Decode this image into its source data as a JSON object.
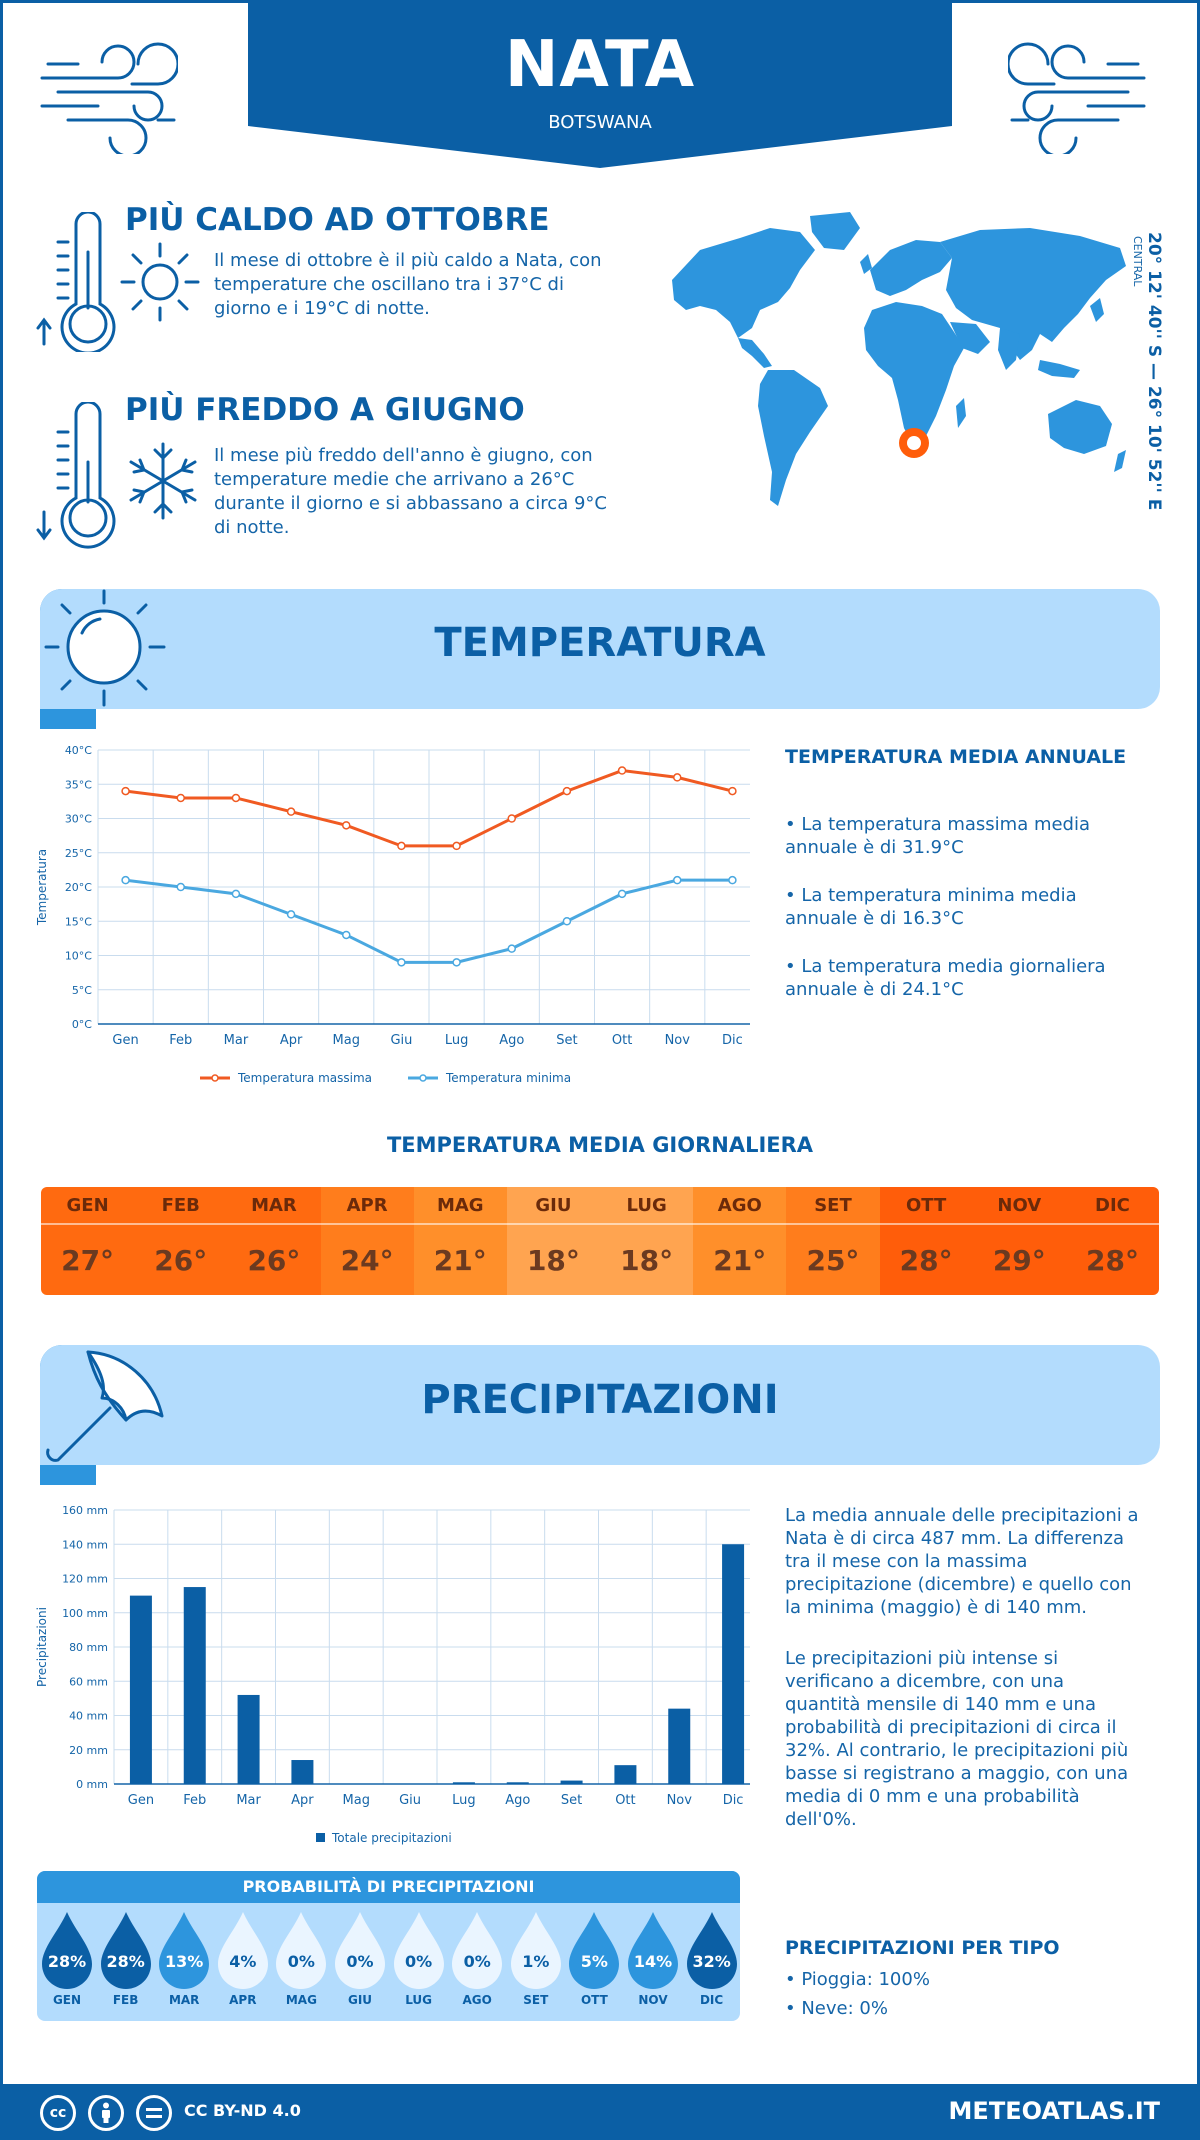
{
  "header": {
    "city": "NATA",
    "country": "BOTSWANA"
  },
  "colors": {
    "brand": "#0b5fa5",
    "accent": "#2d95dd",
    "light": "#b3dcfd",
    "max_line": "#f05a22",
    "min_line": "#4aa8e0",
    "bars": "#0b5fa5"
  },
  "facts": {
    "hot": {
      "title": "PIÙ CALDO AD OTTOBRE",
      "text": "Il mese di ottobre è il più caldo a Nata, con temperature che oscillano tra i 37°C di giorno e i 19°C di notte.",
      "icon": "thermometer-sun-icon"
    },
    "cold": {
      "title": "PIÙ FREDDO A GIUGNO",
      "text": "Il mese più freddo dell'anno è giugno, con temperature medie che arrivano a 26°C durante il giorno e si abbassano a circa 9°C di notte.",
      "icon": "thermometer-snowflake-icon"
    }
  },
  "coordinates": {
    "text": "20° 12' 40'' S — 26° 10' 52'' E",
    "region": "CENTRAL"
  },
  "temperature_section": {
    "title": "TEMPERATURA",
    "annual_title": "TEMPERATURA MEDIA ANNUALE",
    "bullets": [
      "• La temperatura massima media annuale è di 31.9°C",
      "• La temperatura minima media annuale è di 16.3°C",
      "• La temperatura media giornaliera annuale è di 24.1°C"
    ],
    "daily_title": "TEMPERATURA MEDIA GIORNALIERA",
    "daily": [
      {
        "month": "GEN",
        "value": "27°",
        "color": "#ff6a10"
      },
      {
        "month": "FEB",
        "value": "26°",
        "color": "#ff6a10"
      },
      {
        "month": "MAR",
        "value": "26°",
        "color": "#ff6a10"
      },
      {
        "month": "APR",
        "value": "24°",
        "color": "#ff7d1c"
      },
      {
        "month": "MAG",
        "value": "21°",
        "color": "#ff8f2a"
      },
      {
        "month": "GIU",
        "value": "18°",
        "color": "#ffa450"
      },
      {
        "month": "LUG",
        "value": "18°",
        "color": "#ffa450"
      },
      {
        "month": "AGO",
        "value": "21°",
        "color": "#ff8f2a"
      },
      {
        "month": "SET",
        "value": "25°",
        "color": "#ff7d1c"
      },
      {
        "month": "OTT",
        "value": "28°",
        "color": "#ff5d0a"
      },
      {
        "month": "NOV",
        "value": "29°",
        "color": "#ff5d0a"
      },
      {
        "month": "DIC",
        "value": "28°",
        "color": "#ff5d0a"
      }
    ]
  },
  "precip_section": {
    "title": "PRECIPITAZIONI",
    "text1": "La media annuale delle precipitazioni a Nata è di circa 487 mm. La differenza tra il mese con la massima precipitazione (dicembre) e quello con la minima (maggio) è di 140 mm.",
    "text2": "Le precipitazioni più intense si verificano a dicembre, con una quantità mensile di 140 mm e una probabilità di precipitazioni di circa il 32%. Al contrario, le precipitazioni più basse si registrano a maggio, con una media di 0 mm e una probabilità dell'0%.",
    "prob_title": "PROBABILITÀ DI PRECIPITAZIONI",
    "prob": [
      {
        "month": "GEN",
        "value": "28%",
        "level": 3
      },
      {
        "month": "FEB",
        "value": "28%",
        "level": 3
      },
      {
        "month": "MAR",
        "value": "13%",
        "level": 2
      },
      {
        "month": "APR",
        "value": "4%",
        "level": 1
      },
      {
        "month": "MAG",
        "value": "0%",
        "level": 1
      },
      {
        "month": "GIU",
        "value": "0%",
        "level": 1
      },
      {
        "month": "LUG",
        "value": "0%",
        "level": 1
      },
      {
        "month": "AGO",
        "value": "0%",
        "level": 1
      },
      {
        "month": "SET",
        "value": "1%",
        "level": 1
      },
      {
        "month": "OTT",
        "value": "5%",
        "level": 2
      },
      {
        "month": "NOV",
        "value": "14%",
        "level": 2
      },
      {
        "month": "DIC",
        "value": "32%",
        "level": 3
      }
    ],
    "type_title": "PRECIPITAZIONI PER TIPO",
    "types": [
      "• Pioggia: 100%",
      "• Neve: 0%"
    ]
  },
  "chart_data": [
    {
      "type": "line",
      "categories": [
        "Gen",
        "Feb",
        "Mar",
        "Apr",
        "Mag",
        "Giu",
        "Lug",
        "Ago",
        "Set",
        "Ott",
        "Nov",
        "Dic"
      ],
      "series": [
        {
          "name": "Temperatura massima",
          "values": [
            34,
            33,
            33,
            31,
            29,
            26,
            26,
            30,
            34,
            37,
            36,
            34
          ]
        },
        {
          "name": "Temperatura minima",
          "values": [
            21,
            20,
            19,
            16,
            13,
            9,
            9,
            11,
            15,
            19,
            21,
            21
          ]
        }
      ],
      "ylabel": "Temperatura",
      "ylim": [
        0,
        40
      ],
      "yticks": [
        "0°C",
        "5°C",
        "10°C",
        "15°C",
        "20°C",
        "25°C",
        "30°C",
        "35°C",
        "40°C"
      ],
      "grid": true,
      "legend": "bottom"
    },
    {
      "type": "bar",
      "categories": [
        "Gen",
        "Feb",
        "Mar",
        "Apr",
        "Mag",
        "Giu",
        "Lug",
        "Ago",
        "Set",
        "Ott",
        "Nov",
        "Dic"
      ],
      "series": [
        {
          "name": "Totale precipitazioni",
          "values": [
            110,
            115,
            52,
            14,
            0,
            0,
            1,
            1,
            2,
            11,
            44,
            140
          ]
        }
      ],
      "ylabel": "Precipitazioni",
      "ylim": [
        0,
        160
      ],
      "yticks": [
        "0 mm",
        "20 mm",
        "40 mm",
        "60 mm",
        "80 mm",
        "100 mm",
        "120 mm",
        "140 mm",
        "160 mm"
      ],
      "grid": true,
      "legend": "bottom"
    }
  ],
  "footer": {
    "license": "CC BY-ND 4.0",
    "site": "METEOATLAS.IT",
    "icons": [
      "cc-icon",
      "by-icon",
      "nd-icon"
    ]
  }
}
